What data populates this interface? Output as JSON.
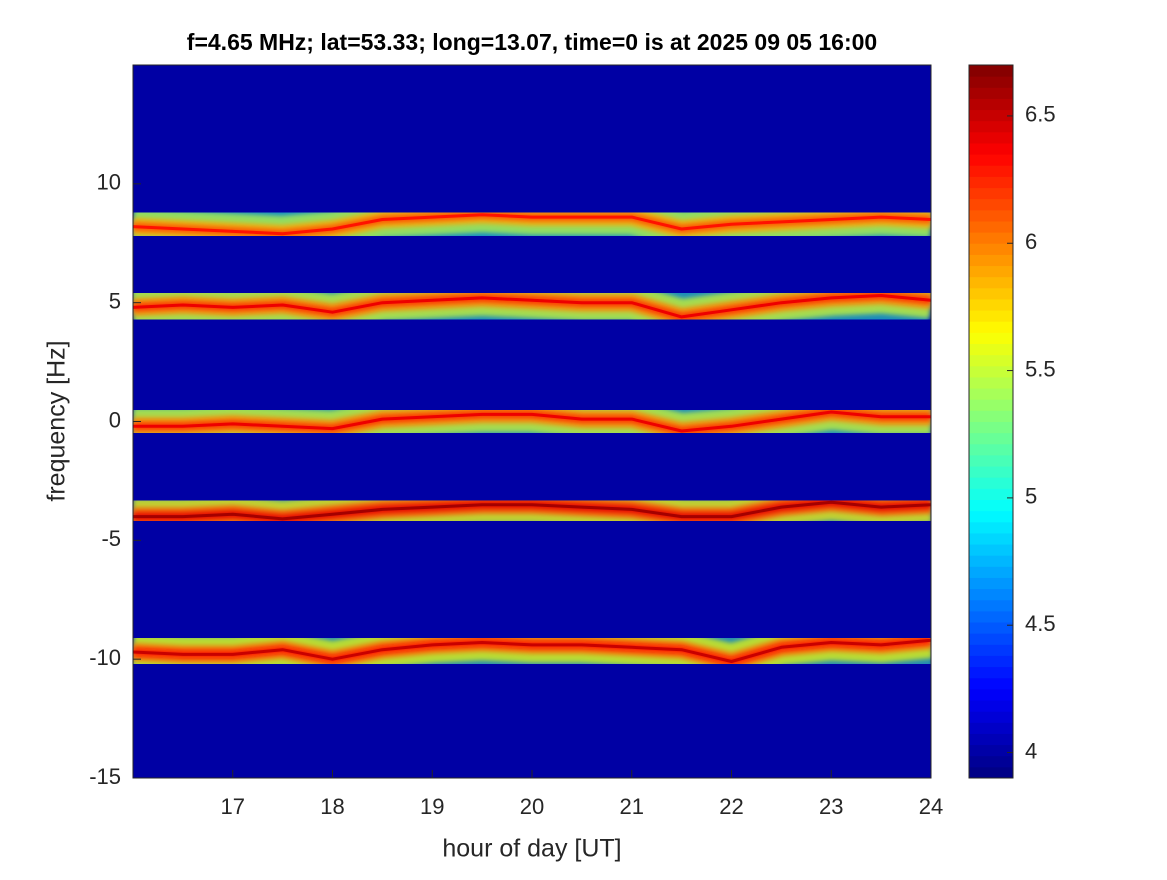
{
  "chart_data": {
    "type": "spectrogram",
    "title": "f=4.65 MHz;  lat=53.33; long=13.07, time=0 is at 2025 09 05 16:00",
    "x_label": "hour of day [UT]",
    "y_label": "frequency [Hz]",
    "x": [
      16,
      16.5,
      17,
      17.5,
      18,
      18.5,
      19,
      19.5,
      20,
      20.5,
      21,
      21.5,
      22,
      22.5,
      23,
      23.5,
      24
    ],
    "series": [
      {
        "values": [
          8.2,
          8.1,
          8.0,
          7.9,
          8.1,
          8.5,
          8.6,
          8.7,
          8.6,
          8.6,
          8.6,
          8.1,
          8.3,
          8.4,
          8.5,
          8.6,
          8.5
        ],
        "level": 6.3
      },
      {
        "values": [
          4.8,
          4.9,
          4.8,
          4.9,
          4.6,
          5.0,
          5.1,
          5.2,
          5.1,
          5.0,
          5.0,
          4.4,
          4.7,
          5.0,
          5.2,
          5.3,
          5.1
        ],
        "level": 6.4
      },
      {
        "values": [
          -0.2,
          -0.2,
          -0.1,
          -0.2,
          -0.3,
          0.1,
          0.2,
          0.3,
          0.3,
          0.1,
          0.1,
          -0.4,
          -0.2,
          0.1,
          0.4,
          0.2,
          0.2
        ],
        "level": 6.4
      },
      {
        "values": [
          -4.0,
          -4.0,
          -3.9,
          -4.1,
          -3.9,
          -3.7,
          -3.6,
          -3.5,
          -3.5,
          -3.6,
          -3.7,
          -4.0,
          -4.0,
          -3.6,
          -3.4,
          -3.6,
          -3.5
        ],
        "level": 6.6
      },
      {
        "values": [
          -9.7,
          -9.8,
          -9.8,
          -9.6,
          -10.0,
          -9.6,
          -9.4,
          -9.3,
          -9.4,
          -9.4,
          -9.5,
          -9.6,
          -10.1,
          -9.5,
          -9.3,
          -9.4,
          -9.2
        ],
        "level": 6.5
      }
    ],
    "background_level": 4.0,
    "colormap": "jet",
    "xlim": [
      16,
      24
    ],
    "xticks": [
      17,
      18,
      19,
      20,
      21,
      22,
      23,
      24
    ],
    "ylim": [
      -15,
      15
    ],
    "yticks": [
      -15,
      -10,
      -5,
      0,
      5,
      10
    ],
    "clim": [
      3.9,
      6.7
    ],
    "cticks": [
      4,
      4.5,
      5,
      5.5,
      6,
      6.5
    ]
  }
}
